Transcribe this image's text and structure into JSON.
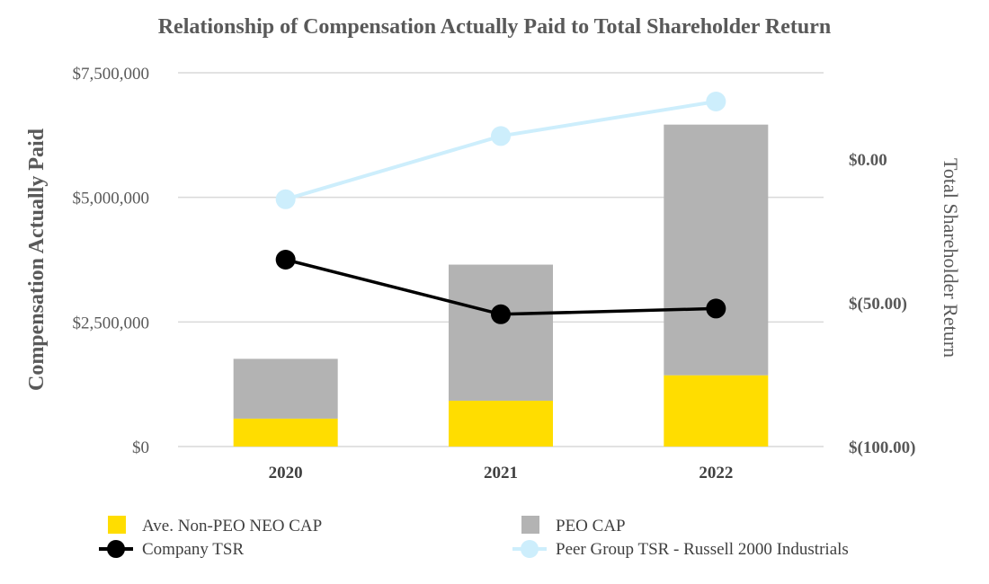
{
  "chart_data": {
    "type": "bar+line",
    "title": "Relationship of Compensation Actually Paid to Total Shareholder Return",
    "ylabel_left": "Compensation Actually Paid",
    "ylabel_right": "Total Shareholder Return",
    "categories": [
      "2020",
      "2021",
      "2022"
    ],
    "left_axis": {
      "ylim": [
        0,
        7500000
      ],
      "ticks": [
        0,
        2500000,
        5000000,
        7500000
      ],
      "tick_labels": [
        "$0",
        "$2,500,000",
        "$5,000,000",
        "$7,500,000"
      ]
    },
    "right_axis": {
      "ylim": [
        -100,
        30
      ],
      "ticks": [
        -100,
        -50,
        0
      ],
      "tick_labels": [
        "$(100.00)",
        "$(50.00)",
        "$0.00"
      ]
    },
    "stacked_bars": [
      {
        "name": "Ave. Non-PEO NEO CAP",
        "color": "#ffdd00",
        "values": [
          560000,
          920000,
          1430000
        ]
      },
      {
        "name": "PEO CAP",
        "color": "#b3b3b3",
        "values": [
          1200000,
          2730000,
          5030000
        ]
      }
    ],
    "lines": [
      {
        "name": "Company TSR",
        "color": "#000000",
        "values": [
          -35,
          -54,
          -52
        ]
      },
      {
        "name": "Peer Group TSR  - Russell 2000 Industrials",
        "color": "#cdeefc",
        "values": [
          -14,
          8,
          20
        ]
      }
    ]
  }
}
